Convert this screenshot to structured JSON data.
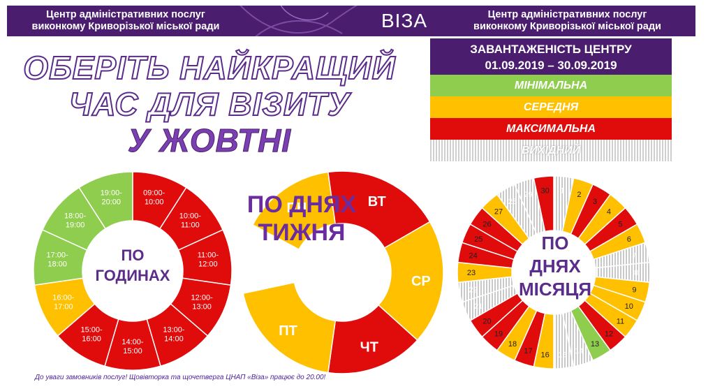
{
  "banner": {
    "left_line1": "Центр адміністративних послуг",
    "left_line2": "виконкому Криворізької міської ради",
    "logo": "ВІЗА",
    "right_line1": "Центр адміністративних послуг",
    "right_line2": "виконкому Криворізької міської ради"
  },
  "headline": {
    "line1": "ОБЕРІТЬ НАЙКРАЩИЙ",
    "line2": "ЧАС ДЛЯ ВІЗИТУ",
    "line3": "У ЖОВТНІ"
  },
  "legend": {
    "title_line1": "ЗАВАНТАЖЕНІСТЬ ЦЕНТРУ",
    "title_line2": "01.09.2019 – 30.09.2019",
    "items": [
      {
        "label": "МІНІМАЛЬНА",
        "level": "min"
      },
      {
        "label": "СЕРЕДНЯ",
        "level": "mid"
      },
      {
        "label": "МАКСИМАЛЬНА",
        "level": "max"
      },
      {
        "label": "ВИХІДНИЙ",
        "level": "off"
      }
    ]
  },
  "colors": {
    "min": "#8fcd4e",
    "mid": "#ffc000",
    "max": "#e00b0b",
    "off": "#d0d0d0",
    "brand": "#4b1d6e",
    "title": "#6a2c9e"
  },
  "hours_chart": {
    "center_line1": "ПО",
    "center_line2": "ГОДИНАХ",
    "slots": [
      {
        "label": "09:00-10:00",
        "line1": "09:00-",
        "line2": "10:00",
        "level": "max"
      },
      {
        "label": "10:00-11:00",
        "line1": "10:00-",
        "line2": "11:00",
        "level": "max"
      },
      {
        "label": "11:00-12:00",
        "line1": "11:00-",
        "line2": "12:00",
        "level": "max"
      },
      {
        "label": "12:00-13:00",
        "line1": "12:00-",
        "line2": "13:00",
        "level": "max"
      },
      {
        "label": "13:00-14:00",
        "line1": "13:00-",
        "line2": "14:00",
        "level": "max"
      },
      {
        "label": "14:00-15:00",
        "line1": "14:00-",
        "line2": "15:00",
        "level": "max"
      },
      {
        "label": "15:00-16:00",
        "line1": "15:00-",
        "line2": "16:00",
        "level": "max"
      },
      {
        "label": "16:00-17:00",
        "line1": "16:00-",
        "line2": "17:00",
        "level": "mid"
      },
      {
        "label": "17:00-18:00",
        "line1": "17:00-",
        "line2": "18:00",
        "level": "min"
      },
      {
        "label": "18:00-19:00",
        "line1": "18:00-",
        "line2": "19:00",
        "level": "min"
      },
      {
        "label": "19:00-20:00",
        "line1": "19:00-",
        "line2": "20:00",
        "level": "min"
      }
    ]
  },
  "week_chart": {
    "title_line1": "ПО ДНЯХ",
    "title_line2": "ТИЖНЯ",
    "days": [
      {
        "label": "ПН",
        "level": "mid"
      },
      {
        "label": "ВТ",
        "level": "max"
      },
      {
        "label": "СР",
        "level": "mid"
      },
      {
        "label": "ЧТ",
        "level": "max"
      },
      {
        "label": "ПТ",
        "level": "mid"
      }
    ]
  },
  "month_chart": {
    "center_line1": "ПО",
    "center_line2": "ДНЯХ",
    "center_line3": "МІСЯЦЯ",
    "days": [
      {
        "label": "1",
        "level": "off"
      },
      {
        "label": "2",
        "level": "mid"
      },
      {
        "label": "3",
        "level": "max"
      },
      {
        "label": "4",
        "level": "mid"
      },
      {
        "label": "5",
        "level": "max"
      },
      {
        "label": "6",
        "level": "mid"
      },
      {
        "label": "7",
        "level": "off"
      },
      {
        "label": "8",
        "level": "off"
      },
      {
        "label": "9",
        "level": "mid"
      },
      {
        "label": "10",
        "level": "mid"
      },
      {
        "label": "11",
        "level": "mid"
      },
      {
        "label": "12",
        "level": "max"
      },
      {
        "label": "13",
        "level": "min"
      },
      {
        "label": "14",
        "level": "off"
      },
      {
        "label": "15",
        "level": "off"
      },
      {
        "label": "16",
        "level": "mid"
      },
      {
        "label": "17",
        "level": "max"
      },
      {
        "label": "18",
        "level": "mid"
      },
      {
        "label": "19",
        "level": "max"
      },
      {
        "label": "20",
        "level": "max"
      },
      {
        "label": "21",
        "level": "off"
      },
      {
        "label": "22",
        "level": "off"
      },
      {
        "label": "23",
        "level": "mid"
      },
      {
        "label": "24",
        "level": "max"
      },
      {
        "label": "25",
        "level": "max"
      },
      {
        "label": "26",
        "level": "max"
      },
      {
        "label": "27",
        "level": "mid"
      },
      {
        "label": "28",
        "level": "off"
      },
      {
        "label": "29",
        "level": "off"
      },
      {
        "label": "30",
        "level": "max"
      }
    ]
  },
  "footer": "До уваги замовників послуг! Щовівторка та щочетверга ЦНАП «Віза» працює до 20.00!"
}
